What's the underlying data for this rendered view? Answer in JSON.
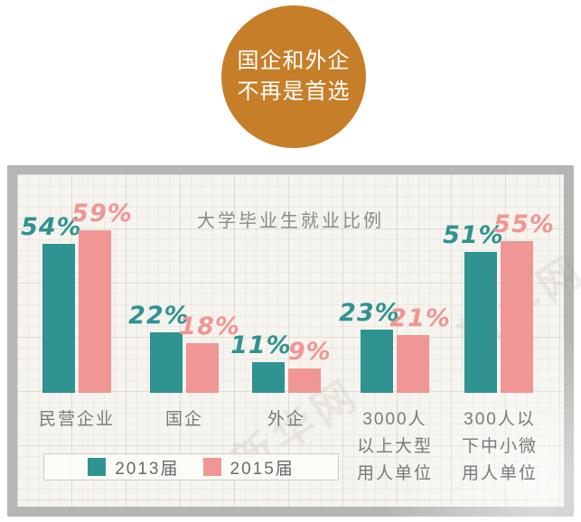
{
  "banner": {
    "line1": "国企和外企",
    "line2": "不再是首选",
    "bg_color": "#c67e28",
    "text_color": "#ffffff"
  },
  "chart_data": {
    "type": "bar",
    "title": "大学毕业生就业比例",
    "categories": [
      "民营企业",
      "国企",
      "外企",
      "3000人以上大型用人单位",
      "300人以下中小微用人单位"
    ],
    "categories_display": [
      [
        "民营企业"
      ],
      [
        "国企"
      ],
      [
        "外企"
      ],
      [
        "3000人",
        "以上大型",
        "用人单位"
      ],
      [
        "300人以",
        "下中小微",
        "用人单位"
      ]
    ],
    "series": [
      {
        "name": "2013届",
        "color": "#2f9391",
        "values": [
          54,
          22,
          11,
          23,
          51
        ]
      },
      {
        "name": "2015届",
        "color": "#f09694",
        "values": [
          59,
          18,
          9,
          21,
          55
        ]
      }
    ],
    "value_suffix": "%",
    "ylim": [
      0,
      65
    ],
    "grid": true,
    "legend_position": "bottom-left"
  },
  "watermark": "新华网"
}
